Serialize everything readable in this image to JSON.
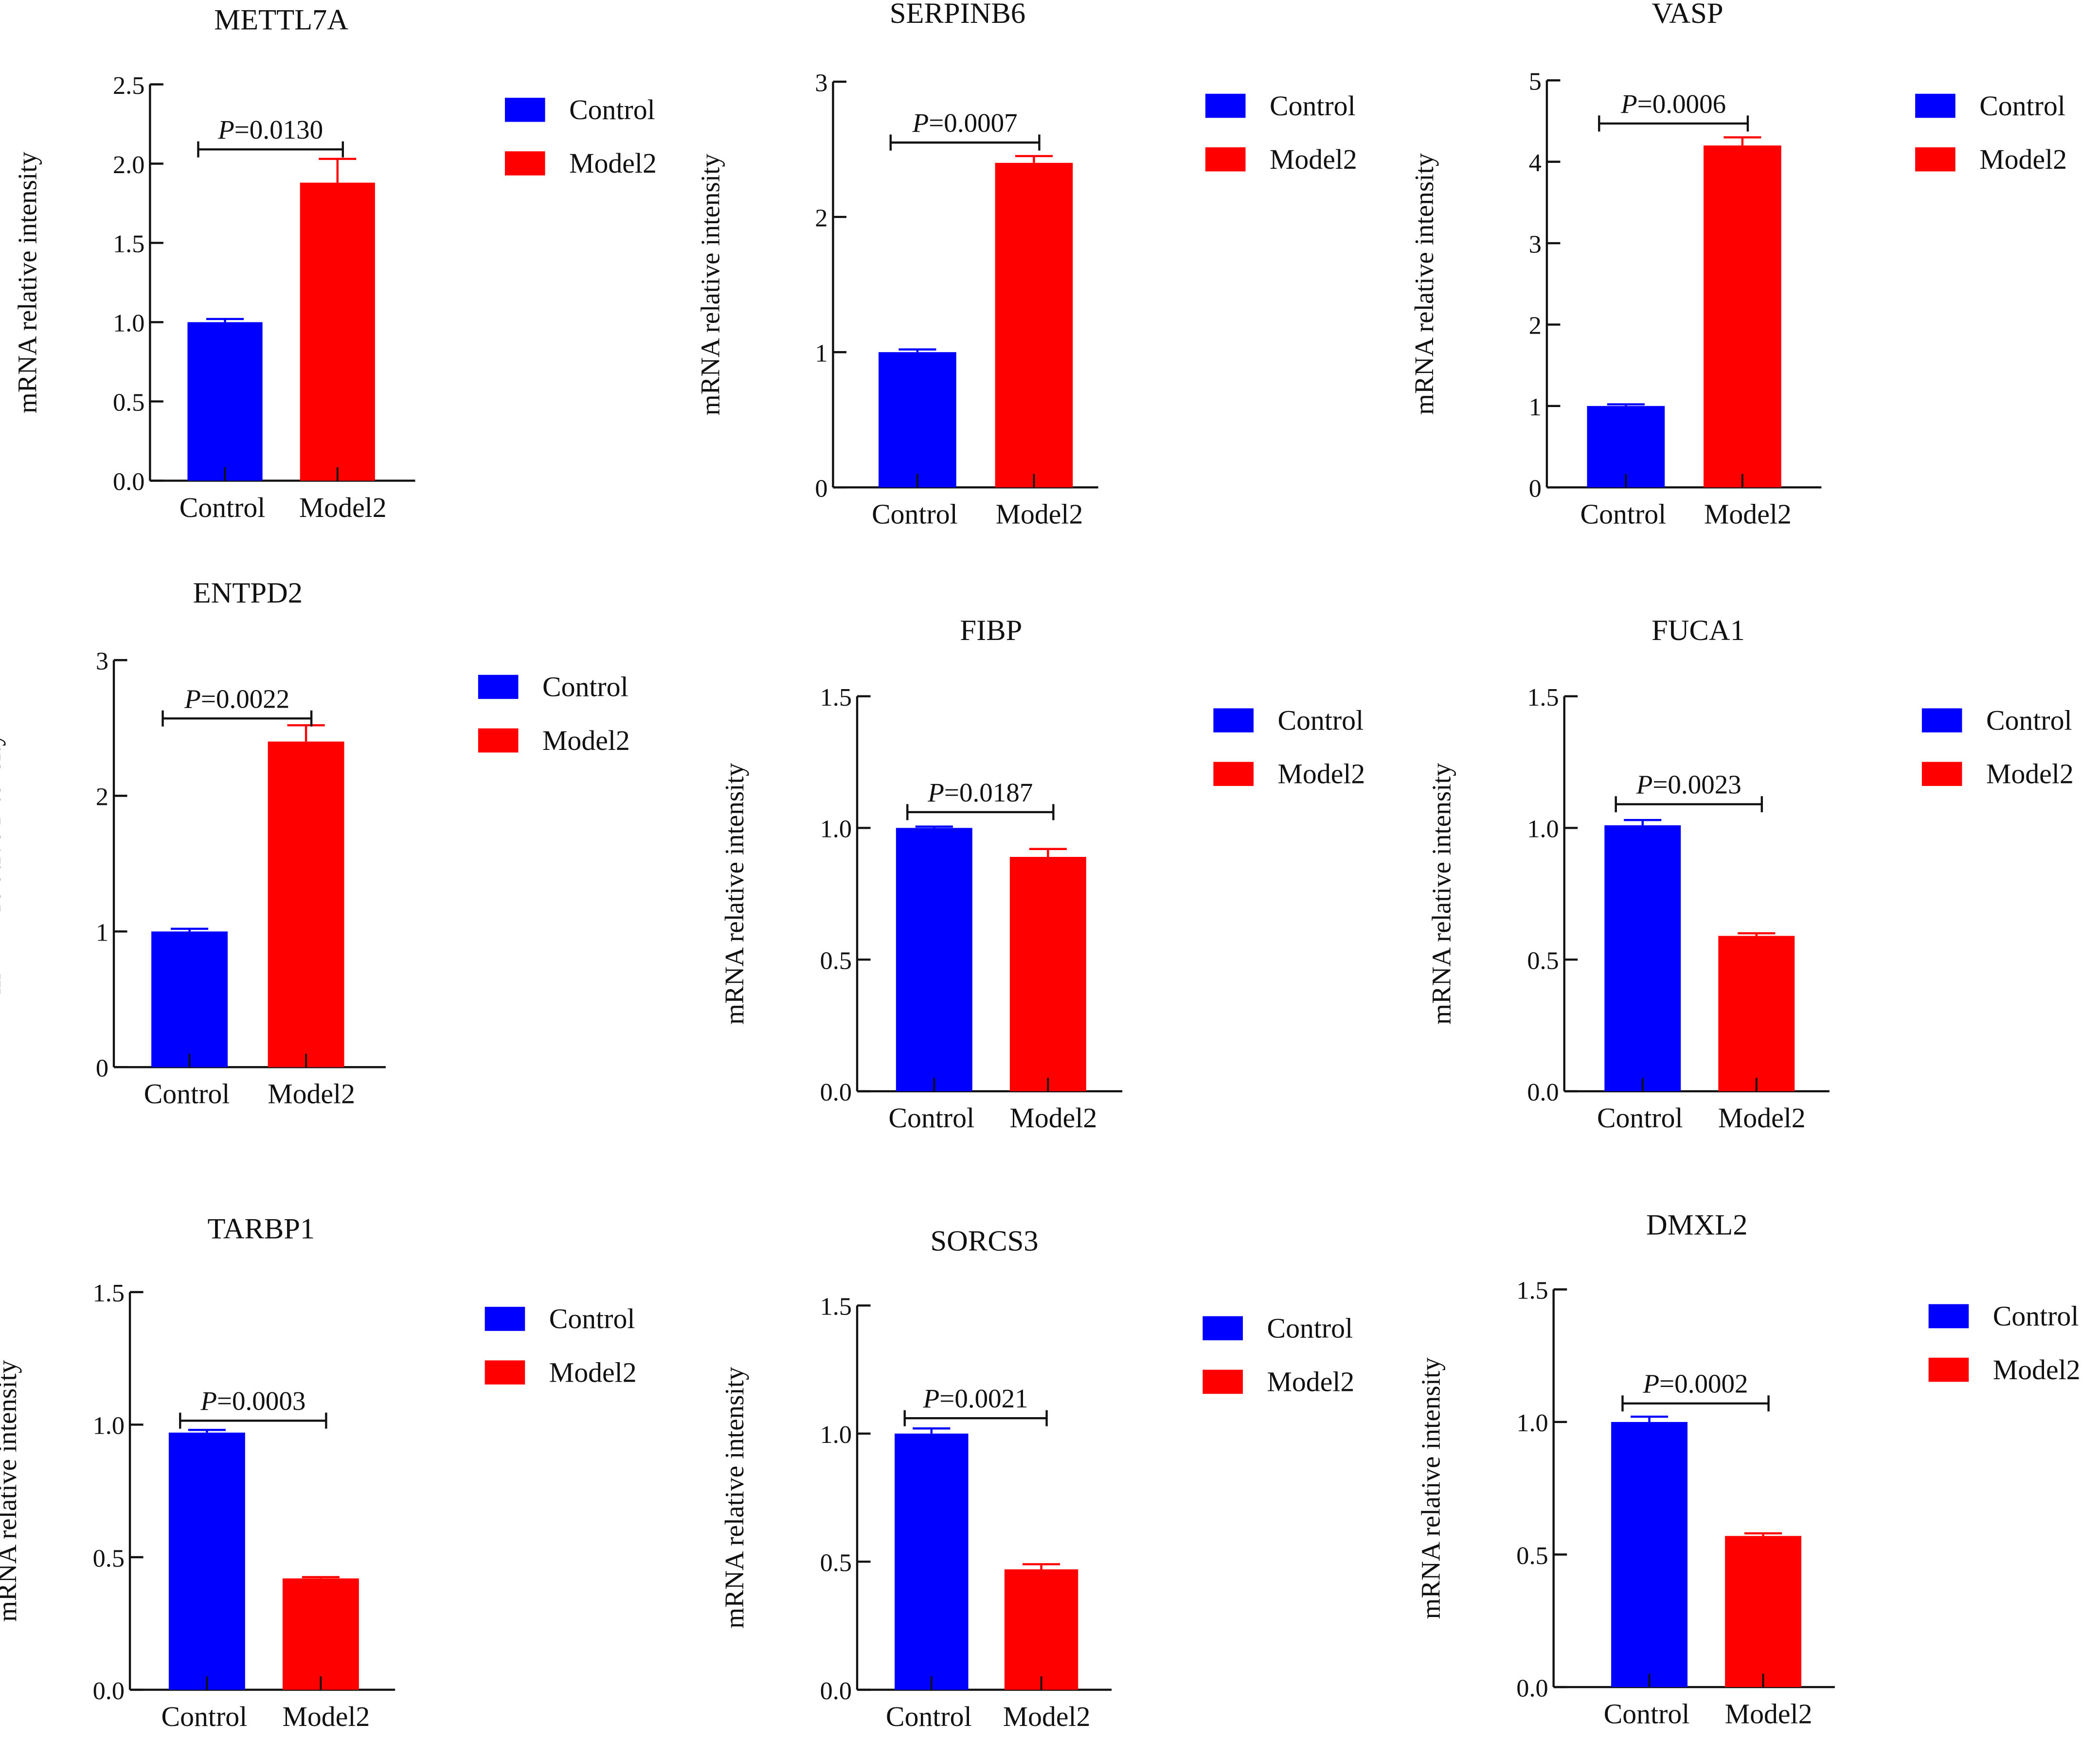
{
  "chart_data": [
    {
      "type": "bar",
      "title": "METTL7A",
      "ylabel": "mRNA relative intensity",
      "categories": [
        "Control",
        "Model2"
      ],
      "values": [
        1.0,
        1.88
      ],
      "errors": [
        0.02,
        0.15
      ],
      "ylim": [
        0,
        2.5
      ],
      "yticks": [
        "0.0",
        "0.5",
        "1.0",
        "1.5",
        "2.0",
        "2.5"
      ],
      "p_label": "P",
      "p_value": "=0.0130",
      "sig_y": 2.09,
      "legend": [
        "Control",
        "Model2"
      ],
      "legend_position": "right"
    },
    {
      "type": "bar",
      "title": "SERPINB6",
      "ylabel": "mRNA relative intensity",
      "categories": [
        "Control",
        "Model2"
      ],
      "values": [
        1.0,
        2.4
      ],
      "errors": [
        0.02,
        0.05
      ],
      "ylim": [
        0,
        3
      ],
      "yticks": [
        "0",
        "1",
        "2",
        "3"
      ],
      "p_label": "P",
      "p_value": "=0.0007",
      "sig_y": 2.55,
      "legend": [
        "Control",
        "Model2"
      ],
      "legend_position": "right"
    },
    {
      "type": "bar",
      "title": "VASP",
      "ylabel": "mRNA relative intensity",
      "categories": [
        "Control",
        "Model2"
      ],
      "values": [
        1.0,
        4.2
      ],
      "errors": [
        0.02,
        0.1
      ],
      "ylim": [
        0,
        5
      ],
      "yticks": [
        "0",
        "1",
        "2",
        "3",
        "4",
        "5"
      ],
      "p_label": "P",
      "p_value": "=0.0006",
      "sig_y": 4.47,
      "legend": [
        "Control",
        "Model2"
      ],
      "legend_position": "right"
    },
    {
      "type": "bar",
      "title": "ENTPD2",
      "ylabel": "mRNA relative intensity",
      "categories": [
        "Control",
        "Model2"
      ],
      "values": [
        1.0,
        2.4
      ],
      "errors": [
        0.02,
        0.12
      ],
      "ylim": [
        0,
        3
      ],
      "yticks": [
        "0",
        "1",
        "2",
        "3"
      ],
      "p_label": "P",
      "p_value": "=0.0022",
      "sig_y": 2.57,
      "legend": [
        "Control",
        "Model2"
      ],
      "legend_position": "right"
    },
    {
      "type": "bar",
      "title": "FIBP",
      "ylabel": "mRNA relative intensity",
      "categories": [
        "Control",
        "Model2"
      ],
      "values": [
        1.0,
        0.89
      ],
      "errors": [
        0.005,
        0.03
      ],
      "ylim": [
        0,
        1.5
      ],
      "yticks": [
        "0.0",
        "0.5",
        "1.0",
        "1.5"
      ],
      "p_label": "P",
      "p_value": "=0.0187",
      "sig_y": 1.06,
      "legend": [
        "Control",
        "Model2"
      ],
      "legend_position": "right"
    },
    {
      "type": "bar",
      "title": "FUCA1",
      "ylabel": "mRNA relative intensity",
      "categories": [
        "Control",
        "Model2"
      ],
      "values": [
        1.01,
        0.59
      ],
      "errors": [
        0.02,
        0.01
      ],
      "ylim": [
        0,
        1.5
      ],
      "yticks": [
        "0.0",
        "0.5",
        "1.0",
        "1.5"
      ],
      "p_label": "P",
      "p_value": "=0.0023",
      "sig_y": 1.09,
      "legend": [
        "Control",
        "Model2"
      ],
      "legend_position": "right"
    },
    {
      "type": "bar",
      "title": "TARBP1",
      "ylabel": "mRNA relative intensity",
      "categories": [
        "Control",
        "Model2"
      ],
      "values": [
        0.97,
        0.42
      ],
      "errors": [
        0.01,
        0.005
      ],
      "ylim": [
        0,
        1.5
      ],
      "yticks": [
        "0.0",
        "0.5",
        "1.0",
        "1.5"
      ],
      "p_label": "P",
      "p_value": "=0.0003",
      "sig_y": 1.015,
      "legend": [
        "Control",
        "Model2"
      ],
      "legend_position": "right"
    },
    {
      "type": "bar",
      "title": "SORCS3",
      "ylabel": "mRNA relative intensity",
      "categories": [
        "Control",
        "Model2"
      ],
      "values": [
        1.0,
        0.47
      ],
      "errors": [
        0.02,
        0.02
      ],
      "ylim": [
        0,
        1.5
      ],
      "yticks": [
        "0.0",
        "0.5",
        "1.0",
        "1.5"
      ],
      "p_label": "P",
      "p_value": "=0.0021",
      "sig_y": 1.06,
      "legend": [
        "Control",
        "Model2"
      ],
      "legend_position": "right"
    },
    {
      "type": "bar",
      "title": "DMXL2",
      "ylabel": "mRNA relative intensity",
      "categories": [
        "Control",
        "Model2"
      ],
      "values": [
        1.0,
        0.57
      ],
      "errors": [
        0.02,
        0.01
      ],
      "ylim": [
        0,
        1.5
      ],
      "yticks": [
        "0.0",
        "0.5",
        "1.0",
        "1.5"
      ],
      "p_label": "P",
      "p_value": "=0.0002",
      "sig_y": 1.07,
      "legend": [
        "Control",
        "Model2"
      ],
      "legend_position": "right"
    }
  ],
  "colors": {
    "control": "#0000ff",
    "model2": "#ff0000",
    "axis": "#111111"
  }
}
